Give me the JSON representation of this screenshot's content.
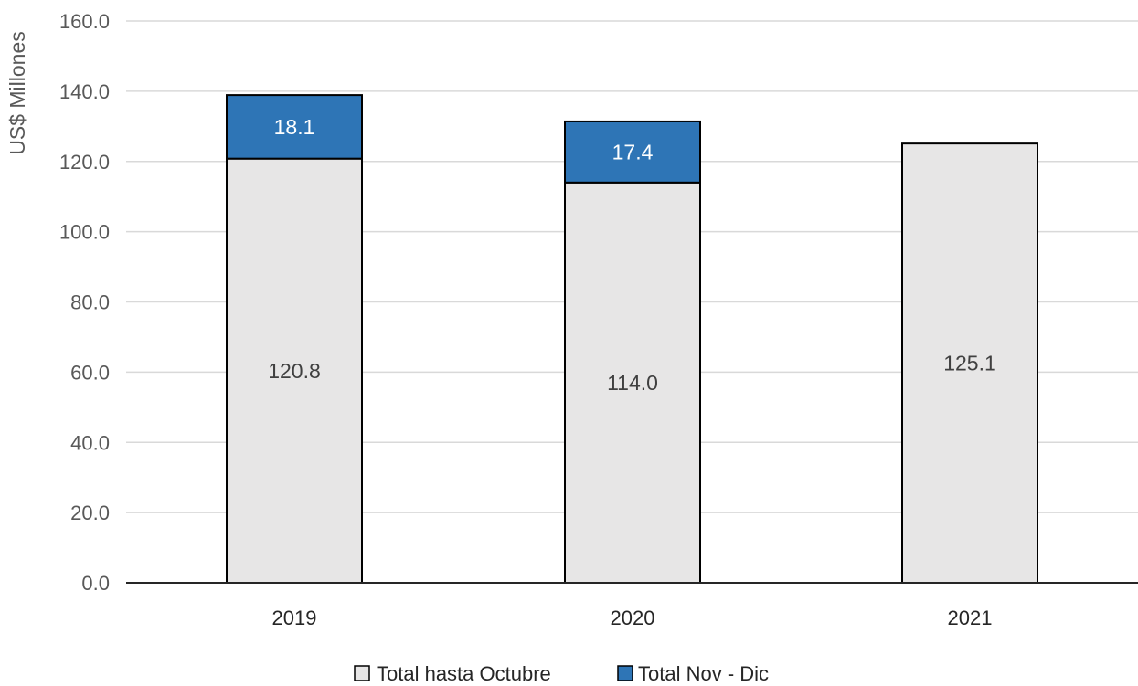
{
  "chart_data": {
    "type": "bar",
    "stacked": true,
    "categories": [
      "2019",
      "2020",
      "2021"
    ],
    "series": [
      {
        "name": "Total hasta Octubre",
        "values": [
          120.8,
          114.0,
          125.1
        ],
        "labels": [
          "120.8",
          "114.0",
          "125.1"
        ],
        "color": "#e7e6e6",
        "label_color": "#404040"
      },
      {
        "name": "Total Nov - Dic",
        "values": [
          18.1,
          17.4,
          null
        ],
        "labels": [
          "18.1",
          "17.4",
          ""
        ],
        "color": "#2e75b6",
        "label_color": "#ffffff"
      }
    ],
    "ylabel": "US$ Millones",
    "xlabel": "",
    "title": "",
    "ylim": [
      0,
      160
    ],
    "yticks": [
      0,
      20,
      40,
      60,
      80,
      100,
      120,
      140,
      160
    ],
    "ytick_labels": [
      "0.0",
      "20.0",
      "40.0",
      "60.0",
      "80.0",
      "100.0",
      "120.0",
      "140.0",
      "160.0"
    ],
    "grid": true,
    "legend_position": "bottom"
  }
}
